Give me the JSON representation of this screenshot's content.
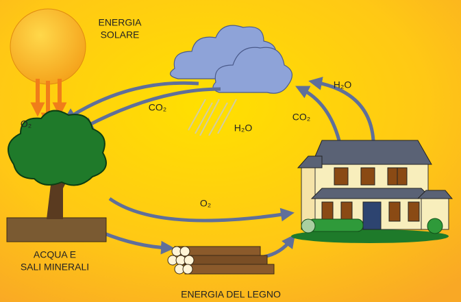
{
  "labels": {
    "sun": [
      "ENERGIA",
      "SOLARE"
    ],
    "o2_tree": "O₂",
    "co2_cloud": "CO₂",
    "h2o_rain": "H₂O",
    "h2o_house": "H₂O",
    "co2_house": "CO₂",
    "o2_flow": "O₂",
    "soil": [
      "ACQUA E",
      "SALI MINERALI"
    ],
    "wood": "ENERGIA DEL LEGNO"
  }
}
